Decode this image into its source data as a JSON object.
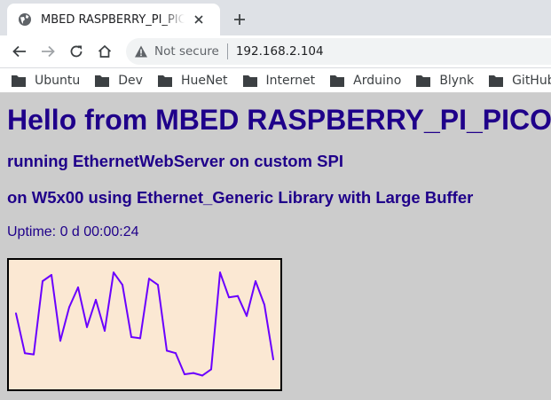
{
  "tab": {
    "title": "MBED RASPBERRY_PI_PICO"
  },
  "omnibox": {
    "security_label": "Not secure",
    "url": "192.168.2.104"
  },
  "bookmarks": [
    {
      "label": "Ubuntu"
    },
    {
      "label": "Dev"
    },
    {
      "label": "HueNet"
    },
    {
      "label": "Internet"
    },
    {
      "label": "Arduino"
    },
    {
      "label": "Blynk"
    },
    {
      "label": "GitHub"
    }
  ],
  "page": {
    "heading": "Hello from MBED RASPBERRY_PI_PICO",
    "sub1": "running EthernetWebServer on custom SPI",
    "sub2": "on W5x00 using Ethernet_Generic Library with Large Buffer",
    "uptime": "Uptime: 0 d 00:00:24"
  },
  "colors": {
    "heading": "#1f008a",
    "graph_line": "#6a00ff",
    "graph_bg": "#fbe8d3",
    "page_bg": "#cccccc"
  },
  "chart_data": {
    "type": "line",
    "y": [
      59,
      27,
      26,
      85,
      90,
      37,
      64,
      80,
      48,
      70,
      45,
      92,
      82,
      40,
      39,
      87,
      82,
      29,
      27,
      10,
      11,
      9,
      14,
      92,
      72,
      73,
      57,
      85,
      66,
      22
    ],
    "ylim": [
      0,
      100
    ],
    "grid": false
  }
}
